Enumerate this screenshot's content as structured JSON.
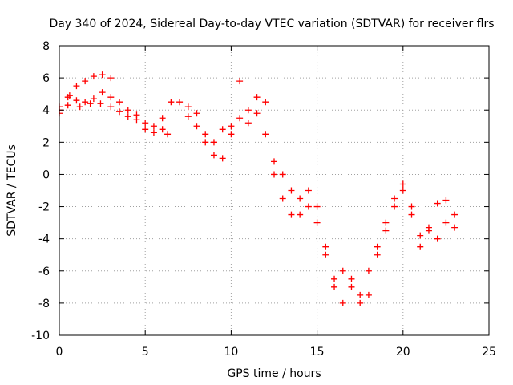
{
  "chart_data": {
    "type": "scatter",
    "title": "Day 340 of 2024, Sidereal Day-to-day VTEC variation (SDTVAR) for receiver flrs",
    "xlabel": "GPS time / hours",
    "ylabel": "SDTVAR / TECUs",
    "xlim": [
      0,
      25
    ],
    "ylim": [
      -10,
      8
    ],
    "x_ticks": [
      0,
      5,
      10,
      15,
      20,
      25
    ],
    "y_ticks": [
      -10,
      -8,
      -6,
      -4,
      -2,
      0,
      2,
      4,
      6,
      8
    ],
    "grid": true,
    "marker": "+",
    "series": [
      {
        "name": "SDTVAR",
        "color": "#ff0000",
        "points": [
          [
            0.0,
            4.0
          ],
          [
            0.5,
            4.8
          ],
          [
            1.0,
            5.5
          ],
          [
            1.5,
            5.8
          ],
          [
            2.0,
            6.1
          ],
          [
            2.5,
            6.2
          ],
          [
            3.0,
            6.0
          ],
          [
            0.0,
            3.8
          ],
          [
            0.5,
            4.3
          ],
          [
            1.0,
            4.6
          ],
          [
            1.5,
            4.5
          ],
          [
            2.0,
            4.7
          ],
          [
            2.5,
            5.1
          ],
          [
            3.0,
            4.8
          ],
          [
            0.0,
            4.2
          ],
          [
            0.6,
            4.9
          ],
          [
            1.2,
            4.2
          ],
          [
            1.8,
            4.4
          ],
          [
            2.4,
            4.4
          ],
          [
            3.0,
            4.2
          ],
          [
            3.5,
            3.9
          ],
          [
            3.5,
            4.5
          ],
          [
            4.0,
            4.0
          ],
          [
            4.5,
            3.7
          ],
          [
            5.0,
            3.2
          ],
          [
            5.5,
            3.0
          ],
          [
            6.0,
            2.8
          ],
          [
            6.3,
            2.5
          ],
          [
            4.0,
            3.6
          ],
          [
            4.5,
            3.4
          ],
          [
            5.0,
            2.8
          ],
          [
            5.5,
            2.6
          ],
          [
            6.0,
            3.5
          ],
          [
            6.5,
            4.5
          ],
          [
            7.0,
            4.5
          ],
          [
            7.5,
            4.2
          ],
          [
            8.0,
            3.0
          ],
          [
            8.5,
            2.5
          ],
          [
            9.0,
            1.2
          ],
          [
            9.5,
            1.0
          ],
          [
            10.0,
            3.0
          ],
          [
            10.5,
            5.8
          ],
          [
            7.5,
            3.6
          ],
          [
            8.0,
            3.8
          ],
          [
            8.5,
            2.0
          ],
          [
            9.0,
            2.0
          ],
          [
            9.5,
            2.8
          ],
          [
            10.0,
            2.5
          ],
          [
            10.5,
            3.5
          ],
          [
            11.0,
            4.0
          ],
          [
            11.5,
            3.8
          ],
          [
            12.0,
            2.5
          ],
          [
            12.5,
            0.0
          ],
          [
            13.0,
            -1.5
          ],
          [
            13.5,
            -2.5
          ],
          [
            11.0,
            3.2
          ],
          [
            11.5,
            4.8
          ],
          [
            12.0,
            4.5
          ],
          [
            12.5,
            0.8
          ],
          [
            13.0,
            0.0
          ],
          [
            13.5,
            -1.0
          ],
          [
            14.0,
            -1.5
          ],
          [
            14.5,
            -2.0
          ],
          [
            15.0,
            -3.0
          ],
          [
            15.5,
            -5.0
          ],
          [
            16.0,
            -6.5
          ],
          [
            16.5,
            -8.0
          ],
          [
            14.0,
            -2.5
          ],
          [
            14.5,
            -1.0
          ],
          [
            15.0,
            -2.0
          ],
          [
            15.5,
            -4.5
          ],
          [
            16.0,
            -7.0
          ],
          [
            16.5,
            -6.0
          ],
          [
            17.0,
            -7.0
          ],
          [
            17.5,
            -8.0
          ],
          [
            18.0,
            -7.5
          ],
          [
            18.5,
            -5.0
          ],
          [
            19.0,
            -3.0
          ],
          [
            19.5,
            -1.5
          ],
          [
            17.0,
            -6.5
          ],
          [
            17.5,
            -7.5
          ],
          [
            18.0,
            -6.0
          ],
          [
            18.5,
            -4.5
          ],
          [
            19.0,
            -3.5
          ],
          [
            19.5,
            -2.0
          ],
          [
            20.0,
            -1.0
          ],
          [
            20.5,
            -2.5
          ],
          [
            21.0,
            -4.5
          ],
          [
            21.5,
            -3.5
          ],
          [
            22.0,
            -4.0
          ],
          [
            22.5,
            -3.0
          ],
          [
            23.0,
            -3.3
          ],
          [
            20.0,
            -0.6
          ],
          [
            20.5,
            -2.0
          ],
          [
            21.0,
            -3.8
          ],
          [
            21.5,
            -3.3
          ],
          [
            22.0,
            -1.8
          ],
          [
            22.5,
            -1.6
          ],
          [
            23.0,
            -2.5
          ]
        ]
      }
    ]
  }
}
